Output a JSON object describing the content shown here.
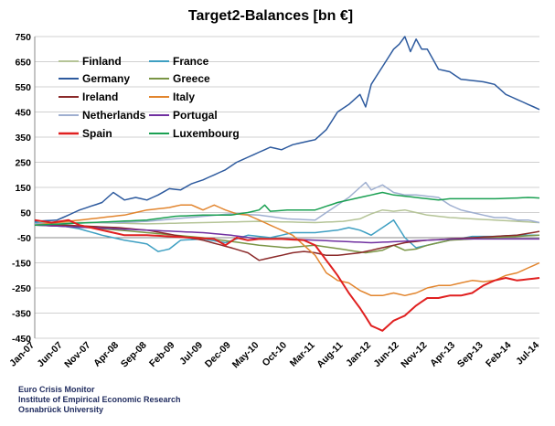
{
  "chart_data": {
    "type": "line",
    "title": "Target2-Balances [bn €]",
    "xlabel": "",
    "ylabel": "",
    "ylim": [
      -450,
      750
    ],
    "yticks": [
      750,
      650,
      550,
      450,
      350,
      250,
      150,
      50,
      -50,
      -150,
      -250,
      -350,
      -450
    ],
    "x_tick_labels": [
      "Jan-07",
      "Jun-07",
      "Nov-07",
      "Apr-08",
      "Sep-08",
      "Feb-09",
      "Jul-09",
      "Dec-09",
      "May-10",
      "Oct-10",
      "Mar-11",
      "Aug-11",
      "Jan-12",
      "Jun-12",
      "Nov-12",
      "Apr-13",
      "Sep-13",
      "Feb-14",
      "Jul-14"
    ],
    "x_start": "Jan-07",
    "x_end": "Jul-14",
    "n_months": 91,
    "series": [
      {
        "name": "Finland",
        "color": "#b5c497",
        "keypoints": [
          [
            0,
            10
          ],
          [
            10,
            10
          ],
          [
            20,
            5
          ],
          [
            30,
            10
          ],
          [
            40,
            15
          ],
          [
            50,
            10
          ],
          [
            55,
            15
          ],
          [
            58,
            25
          ],
          [
            60,
            45
          ],
          [
            62,
            60
          ],
          [
            64,
            55
          ],
          [
            66,
            60
          ],
          [
            68,
            50
          ],
          [
            70,
            40
          ],
          [
            74,
            30
          ],
          [
            78,
            25
          ],
          [
            82,
            20
          ],
          [
            86,
            15
          ],
          [
            90,
            10
          ]
        ]
      },
      {
        "name": "France",
        "color": "#3e9fc2",
        "keypoints": [
          [
            0,
            10
          ],
          [
            4,
            0
          ],
          [
            8,
            -15
          ],
          [
            12,
            -40
          ],
          [
            16,
            -60
          ],
          [
            20,
            -75
          ],
          [
            22,
            -105
          ],
          [
            24,
            -95
          ],
          [
            26,
            -60
          ],
          [
            30,
            -55
          ],
          [
            34,
            -70
          ],
          [
            38,
            -40
          ],
          [
            42,
            -50
          ],
          [
            44,
            -40
          ],
          [
            46,
            -30
          ],
          [
            50,
            -30
          ],
          [
            54,
            -20
          ],
          [
            56,
            -10
          ],
          [
            58,
            -20
          ],
          [
            60,
            -40
          ],
          [
            62,
            -10
          ],
          [
            64,
            20
          ],
          [
            66,
            -50
          ],
          [
            68,
            -90
          ],
          [
            70,
            -80
          ],
          [
            74,
            -60
          ],
          [
            78,
            -45
          ],
          [
            82,
            -45
          ],
          [
            86,
            -40
          ],
          [
            90,
            -40
          ]
        ]
      },
      {
        "name": "Germany",
        "color": "#2d5a9e",
        "keypoints": [
          [
            0,
            15
          ],
          [
            4,
            20
          ],
          [
            8,
            60
          ],
          [
            12,
            90
          ],
          [
            14,
            130
          ],
          [
            16,
            100
          ],
          [
            18,
            110
          ],
          [
            20,
            100
          ],
          [
            22,
            120
          ],
          [
            24,
            145
          ],
          [
            26,
            140
          ],
          [
            28,
            165
          ],
          [
            30,
            180
          ],
          [
            32,
            200
          ],
          [
            34,
            220
          ],
          [
            36,
            250
          ],
          [
            38,
            270
          ],
          [
            40,
            290
          ],
          [
            42,
            310
          ],
          [
            44,
            300
          ],
          [
            46,
            320
          ],
          [
            48,
            330
          ],
          [
            50,
            340
          ],
          [
            52,
            380
          ],
          [
            54,
            450
          ],
          [
            56,
            480
          ],
          [
            58,
            520
          ],
          [
            59,
            470
          ],
          [
            60,
            560
          ],
          [
            62,
            630
          ],
          [
            64,
            700
          ],
          [
            65,
            720
          ],
          [
            66,
            750
          ],
          [
            67,
            690
          ],
          [
            68,
            740
          ],
          [
            69,
            700
          ],
          [
            70,
            700
          ],
          [
            71,
            660
          ],
          [
            72,
            620
          ],
          [
            74,
            610
          ],
          [
            76,
            580
          ],
          [
            78,
            575
          ],
          [
            80,
            570
          ],
          [
            82,
            560
          ],
          [
            84,
            520
          ],
          [
            86,
            500
          ],
          [
            88,
            480
          ],
          [
            90,
            460
          ]
        ]
      },
      {
        "name": "Greece",
        "color": "#7a9545",
        "keypoints": [
          [
            0,
            0
          ],
          [
            5,
            -5
          ],
          [
            10,
            -10
          ],
          [
            15,
            -20
          ],
          [
            20,
            -30
          ],
          [
            25,
            -40
          ],
          [
            30,
            -50
          ],
          [
            35,
            -65
          ],
          [
            40,
            -80
          ],
          [
            45,
            -90
          ],
          [
            50,
            -80
          ],
          [
            53,
            -90
          ],
          [
            56,
            -100
          ],
          [
            59,
            -110
          ],
          [
            62,
            -100
          ],
          [
            64,
            -80
          ],
          [
            66,
            -100
          ],
          [
            68,
            -95
          ],
          [
            70,
            -80
          ],
          [
            74,
            -60
          ],
          [
            78,
            -55
          ],
          [
            82,
            -50
          ],
          [
            86,
            -45
          ],
          [
            90,
            -40
          ]
        ]
      },
      {
        "name": "Ireland",
        "color": "#8b2a2a",
        "keypoints": [
          [
            0,
            5
          ],
          [
            5,
            0
          ],
          [
            10,
            -5
          ],
          [
            15,
            -10
          ],
          [
            20,
            -20
          ],
          [
            25,
            -40
          ],
          [
            30,
            -60
          ],
          [
            35,
            -90
          ],
          [
            38,
            -110
          ],
          [
            40,
            -140
          ],
          [
            42,
            -130
          ],
          [
            44,
            -120
          ],
          [
            46,
            -110
          ],
          [
            48,
            -105
          ],
          [
            50,
            -110
          ],
          [
            52,
            -120
          ],
          [
            54,
            -120
          ],
          [
            56,
            -115
          ],
          [
            58,
            -110
          ],
          [
            60,
            -100
          ],
          [
            62,
            -90
          ],
          [
            64,
            -80
          ],
          [
            66,
            -70
          ],
          [
            70,
            -60
          ],
          [
            74,
            -55
          ],
          [
            78,
            -50
          ],
          [
            82,
            -45
          ],
          [
            86,
            -40
          ],
          [
            90,
            -25
          ]
        ]
      },
      {
        "name": "Italy",
        "color": "#e2852e",
        "keypoints": [
          [
            0,
            0
          ],
          [
            4,
            10
          ],
          [
            8,
            20
          ],
          [
            12,
            30
          ],
          [
            16,
            40
          ],
          [
            20,
            60
          ],
          [
            24,
            70
          ],
          [
            26,
            80
          ],
          [
            28,
            80
          ],
          [
            30,
            60
          ],
          [
            32,
            80
          ],
          [
            34,
            60
          ],
          [
            36,
            45
          ],
          [
            38,
            40
          ],
          [
            40,
            20
          ],
          [
            42,
            0
          ],
          [
            44,
            -20
          ],
          [
            46,
            -40
          ],
          [
            48,
            -80
          ],
          [
            50,
            -120
          ],
          [
            52,
            -190
          ],
          [
            54,
            -220
          ],
          [
            56,
            -230
          ],
          [
            58,
            -260
          ],
          [
            60,
            -280
          ],
          [
            62,
            -280
          ],
          [
            64,
            -270
          ],
          [
            66,
            -280
          ],
          [
            68,
            -270
          ],
          [
            70,
            -250
          ],
          [
            72,
            -240
          ],
          [
            74,
            -240
          ],
          [
            76,
            -230
          ],
          [
            78,
            -220
          ],
          [
            80,
            -225
          ],
          [
            82,
            -220
          ],
          [
            84,
            -200
          ],
          [
            86,
            -190
          ],
          [
            88,
            -170
          ],
          [
            90,
            -150
          ]
        ]
      },
      {
        "name": "Netherlands",
        "color": "#9fafd0",
        "keypoints": [
          [
            0,
            5
          ],
          [
            5,
            5
          ],
          [
            10,
            10
          ],
          [
            15,
            10
          ],
          [
            20,
            15
          ],
          [
            25,
            25
          ],
          [
            30,
            35
          ],
          [
            35,
            45
          ],
          [
            40,
            40
          ],
          [
            45,
            25
          ],
          [
            50,
            20
          ],
          [
            52,
            50
          ],
          [
            54,
            80
          ],
          [
            56,
            110
          ],
          [
            58,
            150
          ],
          [
            59,
            170
          ],
          [
            60,
            140
          ],
          [
            62,
            160
          ],
          [
            64,
            130
          ],
          [
            66,
            120
          ],
          [
            68,
            120
          ],
          [
            70,
            115
          ],
          [
            72,
            110
          ],
          [
            74,
            80
          ],
          [
            76,
            60
          ],
          [
            78,
            50
          ],
          [
            80,
            40
          ],
          [
            82,
            30
          ],
          [
            84,
            30
          ],
          [
            86,
            20
          ],
          [
            88,
            20
          ],
          [
            90,
            10
          ]
        ]
      },
      {
        "name": "Portugal",
        "color": "#7030a0",
        "keypoints": [
          [
            0,
            0
          ],
          [
            5,
            -5
          ],
          [
            10,
            -10
          ],
          [
            15,
            -15
          ],
          [
            20,
            -20
          ],
          [
            25,
            -25
          ],
          [
            30,
            -30
          ],
          [
            35,
            -40
          ],
          [
            40,
            -55
          ],
          [
            45,
            -55
          ],
          [
            50,
            -60
          ],
          [
            55,
            -65
          ],
          [
            60,
            -70
          ],
          [
            65,
            -65
          ],
          [
            70,
            -60
          ],
          [
            75,
            -55
          ],
          [
            80,
            -55
          ],
          [
            85,
            -55
          ],
          [
            90,
            -55
          ]
        ]
      },
      {
        "name": "Spain",
        "color": "#e02020",
        "keypoints": [
          [
            0,
            20
          ],
          [
            3,
            10
          ],
          [
            6,
            20
          ],
          [
            8,
            0
          ],
          [
            10,
            -10
          ],
          [
            12,
            -20
          ],
          [
            14,
            -30
          ],
          [
            16,
            -40
          ],
          [
            20,
            -40
          ],
          [
            24,
            -45
          ],
          [
            28,
            -50
          ],
          [
            32,
            -55
          ],
          [
            34,
            -80
          ],
          [
            36,
            -50
          ],
          [
            38,
            -60
          ],
          [
            40,
            -55
          ],
          [
            44,
            -55
          ],
          [
            48,
            -60
          ],
          [
            50,
            -80
          ],
          [
            52,
            -140
          ],
          [
            54,
            -200
          ],
          [
            56,
            -270
          ],
          [
            58,
            -330
          ],
          [
            60,
            -400
          ],
          [
            62,
            -420
          ],
          [
            64,
            -380
          ],
          [
            66,
            -360
          ],
          [
            68,
            -320
          ],
          [
            70,
            -290
          ],
          [
            72,
            -290
          ],
          [
            74,
            -280
          ],
          [
            76,
            -280
          ],
          [
            78,
            -270
          ],
          [
            80,
            -240
          ],
          [
            82,
            -220
          ],
          [
            84,
            -210
          ],
          [
            86,
            -220
          ],
          [
            88,
            -215
          ],
          [
            90,
            -210
          ]
        ]
      },
      {
        "name": "Luxembourg",
        "color": "#1aa052",
        "keypoints": [
          [
            0,
            0
          ],
          [
            10,
            10
          ],
          [
            20,
            20
          ],
          [
            25,
            35
          ],
          [
            30,
            40
          ],
          [
            35,
            40
          ],
          [
            38,
            50
          ],
          [
            40,
            60
          ],
          [
            41,
            80
          ],
          [
            42,
            55
          ],
          [
            45,
            60
          ],
          [
            50,
            60
          ],
          [
            52,
            75
          ],
          [
            54,
            90
          ],
          [
            56,
            100
          ],
          [
            58,
            110
          ],
          [
            60,
            120
          ],
          [
            62,
            130
          ],
          [
            64,
            120
          ],
          [
            66,
            115
          ],
          [
            68,
            110
          ],
          [
            70,
            105
          ],
          [
            72,
            100
          ],
          [
            74,
            105
          ],
          [
            78,
            105
          ],
          [
            82,
            105
          ],
          [
            86,
            108
          ],
          [
            88,
            110
          ],
          [
            90,
            108
          ]
        ]
      }
    ]
  },
  "footer": {
    "line1": "Euro Crisis Monitor",
    "line2": "Institute of Empirical Economic Research",
    "line3": "Osnabrück University"
  }
}
